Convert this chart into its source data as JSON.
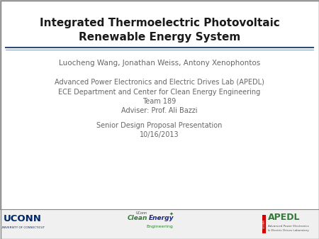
{
  "title_line1": "Integrated Thermoelectric Photovoltaic",
  "title_line2": "Renewable Energy System",
  "authors": "Luocheng Wang, Jonathan Weiss, Antony Xenophontos",
  "body_lines": [
    "Advanced Power Electronics and Electric Drives Lab (APEDL)",
    "ECE Department and Center for Clean Energy Engineering",
    "Team 189",
    "Adviser: Prof. Ali Bazzi",
    "Senior Design Proposal Presentation",
    "10/16/2013"
  ],
  "title_color": "#1a1a1a",
  "body_color": "#666666",
  "separator_color1": "#2e4a7a",
  "separator_color2": "#4a6a9a",
  "footer_bg": "#efefef",
  "footer_line_color": "#bbbbbb",
  "uconn_color": "#002868",
  "clean_energy_dark": "#2e7d32",
  "clean_energy_blue": "#1565c0",
  "apedl_green": "#2e7d32",
  "apedl_red": "#cc0000"
}
